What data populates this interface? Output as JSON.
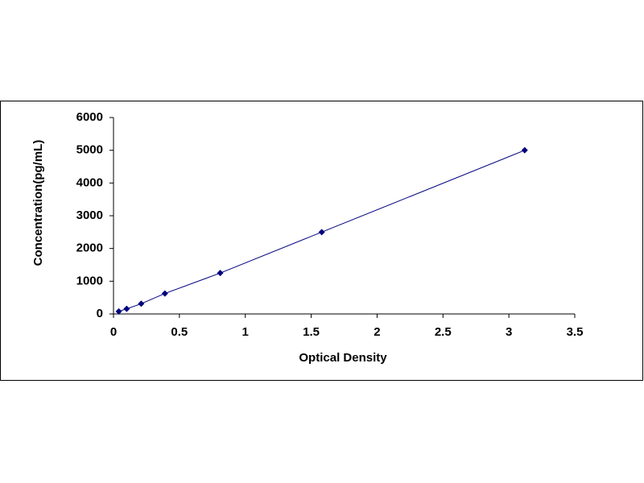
{
  "chart_data": {
    "type": "line",
    "x_label": "Optical Density",
    "y_label": "Concentration(pg/mL)",
    "x": [
      0.04,
      0.1,
      0.21,
      0.39,
      0.81,
      1.58,
      3.12
    ],
    "values": [
      78,
      156,
      312,
      625,
      1250,
      2500,
      5000
    ],
    "color": "#00007f",
    "marker": "diamond",
    "xlim": [
      0,
      3.5
    ],
    "xticks": [
      0,
      0.5,
      1,
      1.5,
      2,
      2.5,
      3,
      3.5
    ],
    "ylim": [
      0,
      6000
    ],
    "yticks": [
      0,
      1000,
      2000,
      3000,
      4000,
      5000,
      6000
    ],
    "grid": false
  }
}
